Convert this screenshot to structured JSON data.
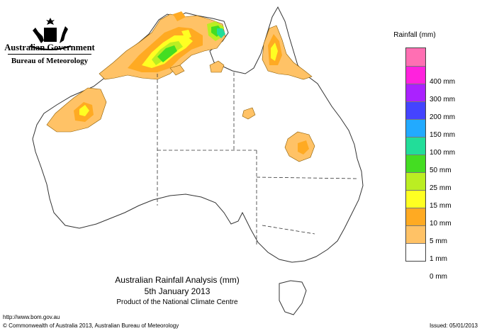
{
  "header": {
    "org_name": "Australian Government",
    "agency_name": "Bureau of Meteorology",
    "logo_icon": "coat-of-arms-icon"
  },
  "legend": {
    "title": "Rainfall (mm)",
    "bands": [
      {
        "label": "",
        "color": "#ff6fb3"
      },
      {
        "label": "400 mm",
        "color": "#ff22dd"
      },
      {
        "label": "300 mm",
        "color": "#aa22ff"
      },
      {
        "label": "200 mm",
        "color": "#4444ff"
      },
      {
        "label": "150 mm",
        "color": "#22aaff"
      },
      {
        "label": "100 mm",
        "color": "#22dd99"
      },
      {
        "label": "50 mm",
        "color": "#44dd22"
      },
      {
        "label": "25 mm",
        "color": "#bbee22"
      },
      {
        "label": "15 mm",
        "color": "#ffff22"
      },
      {
        "label": "10 mm",
        "color": "#ffaa22"
      },
      {
        "label": "5 mm",
        "color": "#ffc266"
      },
      {
        "label": "1 mm",
        "color": "#ffffff"
      },
      {
        "label": "0 mm",
        "color": ""
      }
    ]
  },
  "map": {
    "title": "Australian Rainfall Analysis (mm)",
    "date": "5th January 2013",
    "product": "Product of the National Climate Centre"
  },
  "footer": {
    "url": "http://www.bom.gov.au",
    "copyright": "© Commonwealth of Australia 2013, Australian Bureau of Meteorology",
    "issued": "Issued: 05/01/2013"
  }
}
